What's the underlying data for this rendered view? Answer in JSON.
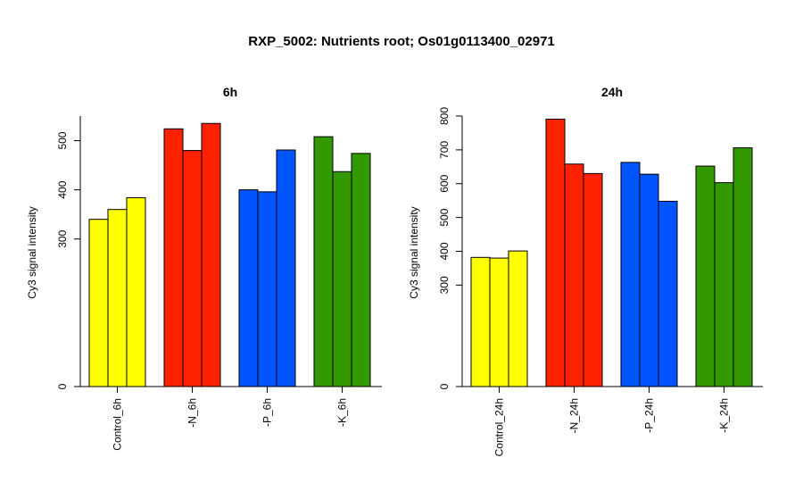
{
  "title": "RXP_5002: Nutrients root; Os01g0113400_02971",
  "chart_data": [
    {
      "type": "bar",
      "title": "6h",
      "ylabel": "Cy3 signal intensity",
      "xlabel": "",
      "ylim": [
        0,
        550
      ],
      "yticks": [
        0,
        300,
        400,
        500
      ],
      "grid": false,
      "categories": [
        "Control_6h",
        "-N_6h",
        "-P_6h",
        "-K_6h"
      ],
      "colors": [
        "#ffff00",
        "#ff2200",
        "#0055ff",
        "#339900"
      ],
      "values": [
        [
          340,
          360,
          384
        ],
        [
          524,
          480,
          535
        ],
        [
          400,
          396,
          481
        ],
        [
          508,
          437,
          474
        ]
      ]
    },
    {
      "type": "bar",
      "title": "24h",
      "ylabel": "Cy3 signal intensity",
      "xlabel": "",
      "ylim": [
        0,
        800
      ],
      "yticks": [
        0,
        300,
        400,
        500,
        600,
        700,
        800
      ],
      "grid": false,
      "categories": [
        "Control_24h",
        "-N_24h",
        "-P_24h",
        "-K_24h"
      ],
      "colors": [
        "#ffff00",
        "#ff2200",
        "#0055ff",
        "#339900"
      ],
      "values": [
        [
          382,
          380,
          401
        ],
        [
          791,
          658,
          630
        ],
        [
          663,
          628,
          548
        ],
        [
          652,
          603,
          706
        ]
      ]
    }
  ]
}
